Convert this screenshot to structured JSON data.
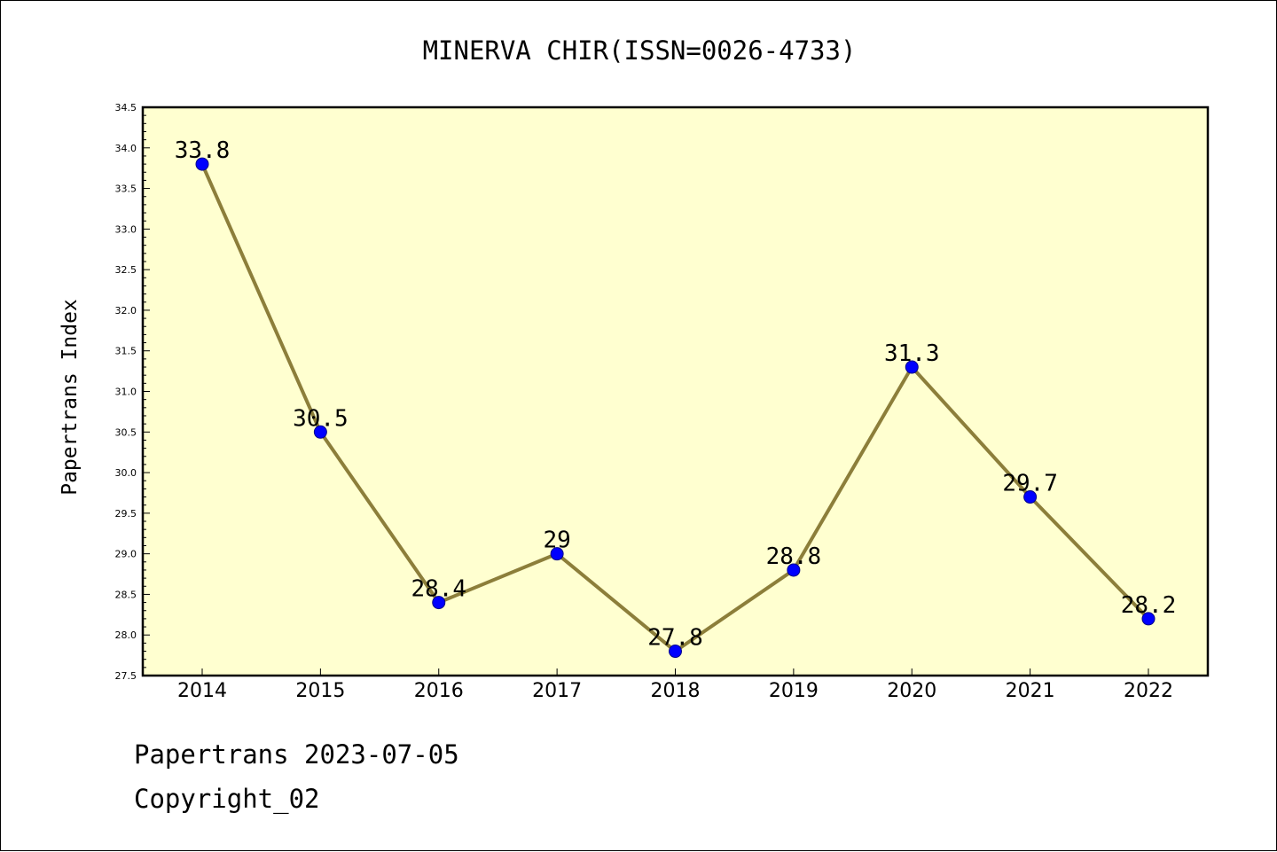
{
  "chart_data": {
    "type": "line",
    "title": "MINERVA CHIR(ISSN=0026-4733)",
    "xlabel": "",
    "ylabel": "Papertrans Index",
    "categories": [
      "2014",
      "2015",
      "2016",
      "2017",
      "2018",
      "2019",
      "2020",
      "2021",
      "2022"
    ],
    "series": [
      {
        "values": [
          33.8,
          30.5,
          28.4,
          29.0,
          27.8,
          28.8,
          31.3,
          29.7,
          28.2
        ]
      }
    ],
    "data_labels": [
      "33.8",
      "30.5",
      "28.4",
      "29",
      "27.8",
      "28.8",
      "31.3",
      "29.7",
      "28.2"
    ],
    "ylim": [
      27.5,
      34.5
    ],
    "yticks": [
      "27.5",
      "28.0",
      "28.5",
      "29.0",
      "29.5",
      "30.0",
      "30.5",
      "31.0",
      "31.5",
      "32.0",
      "32.5",
      "33.0",
      "33.5",
      "34.0",
      "34.5"
    ],
    "grid": false,
    "legend": "none",
    "colors": {
      "plot_background": "#ffffd0",
      "line": "#8c7e3a",
      "marker": "#0000ff",
      "marker_edge": "#00008b"
    }
  },
  "footer": {
    "date_line": "Papertrans 2023-07-05",
    "copyright": "Copyright_02"
  }
}
